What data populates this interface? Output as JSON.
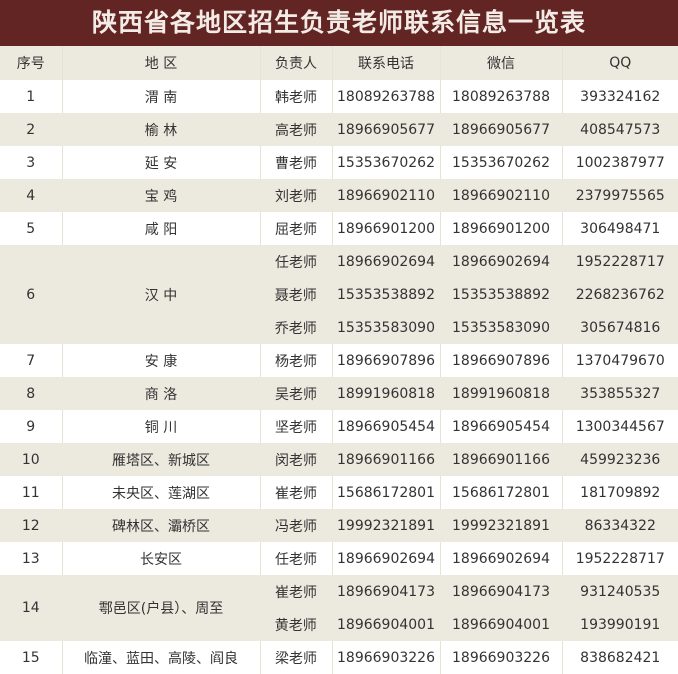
{
  "title": "陕西省各地区招生负责老师联系信息一览表",
  "headers": {
    "index": "序号",
    "region": "地 区",
    "person": "负责人",
    "phone": "联系电话",
    "wechat": "微信",
    "qq": "QQ"
  },
  "colors": {
    "title_bg": "#632523",
    "stripe": "#ECE9DF"
  },
  "rows": [
    {
      "index": "1",
      "region": "渭 南",
      "contacts": [
        {
          "person": "韩老师",
          "phone": "18089263788",
          "wechat": "18089263788",
          "qq": "393324162"
        }
      ]
    },
    {
      "index": "2",
      "region": "榆 林",
      "contacts": [
        {
          "person": "高老师",
          "phone": "18966905677",
          "wechat": "18966905677",
          "qq": "408547573"
        }
      ]
    },
    {
      "index": "3",
      "region": "延 安",
      "contacts": [
        {
          "person": "曹老师",
          "phone": "15353670262",
          "wechat": "15353670262",
          "qq": "1002387977"
        }
      ]
    },
    {
      "index": "4",
      "region": "宝 鸡",
      "contacts": [
        {
          "person": "刘老师",
          "phone": "18966902110",
          "wechat": "18966902110",
          "qq": "2379975565"
        }
      ]
    },
    {
      "index": "5",
      "region": "咸 阳",
      "contacts": [
        {
          "person": "屈老师",
          "phone": "18966901200",
          "wechat": "18966901200",
          "qq": "306498471"
        }
      ]
    },
    {
      "index": "6",
      "region": "汉 中",
      "contacts": [
        {
          "person": "任老师",
          "phone": "18966902694",
          "wechat": "18966902694",
          "qq": "1952228717"
        },
        {
          "person": "聂老师",
          "phone": "15353538892",
          "wechat": "15353538892",
          "qq": "2268236762"
        },
        {
          "person": "乔老师",
          "phone": "15353583090",
          "wechat": "15353583090",
          "qq": "305674816"
        }
      ]
    },
    {
      "index": "7",
      "region": "安 康",
      "contacts": [
        {
          "person": "杨老师",
          "phone": "18966907896",
          "wechat": "18966907896",
          "qq": "1370479670"
        }
      ]
    },
    {
      "index": "8",
      "region": "商 洛",
      "contacts": [
        {
          "person": "吴老师",
          "phone": "18991960818",
          "wechat": "18991960818",
          "qq": "353855327"
        }
      ]
    },
    {
      "index": "9",
      "region": "铜 川",
      "contacts": [
        {
          "person": "坚老师",
          "phone": "18966905454",
          "wechat": "18966905454",
          "qq": "1300344567"
        }
      ]
    },
    {
      "index": "10",
      "region": "雁塔区、新城区",
      "contacts": [
        {
          "person": "闵老师",
          "phone": "18966901166",
          "wechat": "18966901166",
          "qq": "459923236"
        }
      ]
    },
    {
      "index": "11",
      "region": "未央区、莲湖区",
      "contacts": [
        {
          "person": "崔老师",
          "phone": "15686172801",
          "wechat": "15686172801",
          "qq": "181709892"
        }
      ]
    },
    {
      "index": "12",
      "region": "碑林区、灞桥区",
      "contacts": [
        {
          "person": "冯老师",
          "phone": "19992321891",
          "wechat": "19992321891",
          "qq": "86334322"
        }
      ]
    },
    {
      "index": "13",
      "region": "长安区",
      "contacts": [
        {
          "person": "任老师",
          "phone": "18966902694",
          "wechat": "18966902694",
          "qq": "1952228717"
        }
      ]
    },
    {
      "index": "14",
      "region": "鄠邑区(户县）、周至",
      "contacts": [
        {
          "person": "崔老师",
          "phone": "18966904173",
          "wechat": "18966904173",
          "qq": "931240535"
        },
        {
          "person": "黄老师",
          "phone": "18966904001",
          "wechat": "18966904001",
          "qq": "193990191"
        }
      ]
    },
    {
      "index": "15",
      "region": "临潼、蓝田、高陵、阎良",
      "contacts": [
        {
          "person": "梁老师",
          "phone": "18966903226",
          "wechat": "18966903226",
          "qq": "838682421"
        }
      ]
    }
  ]
}
